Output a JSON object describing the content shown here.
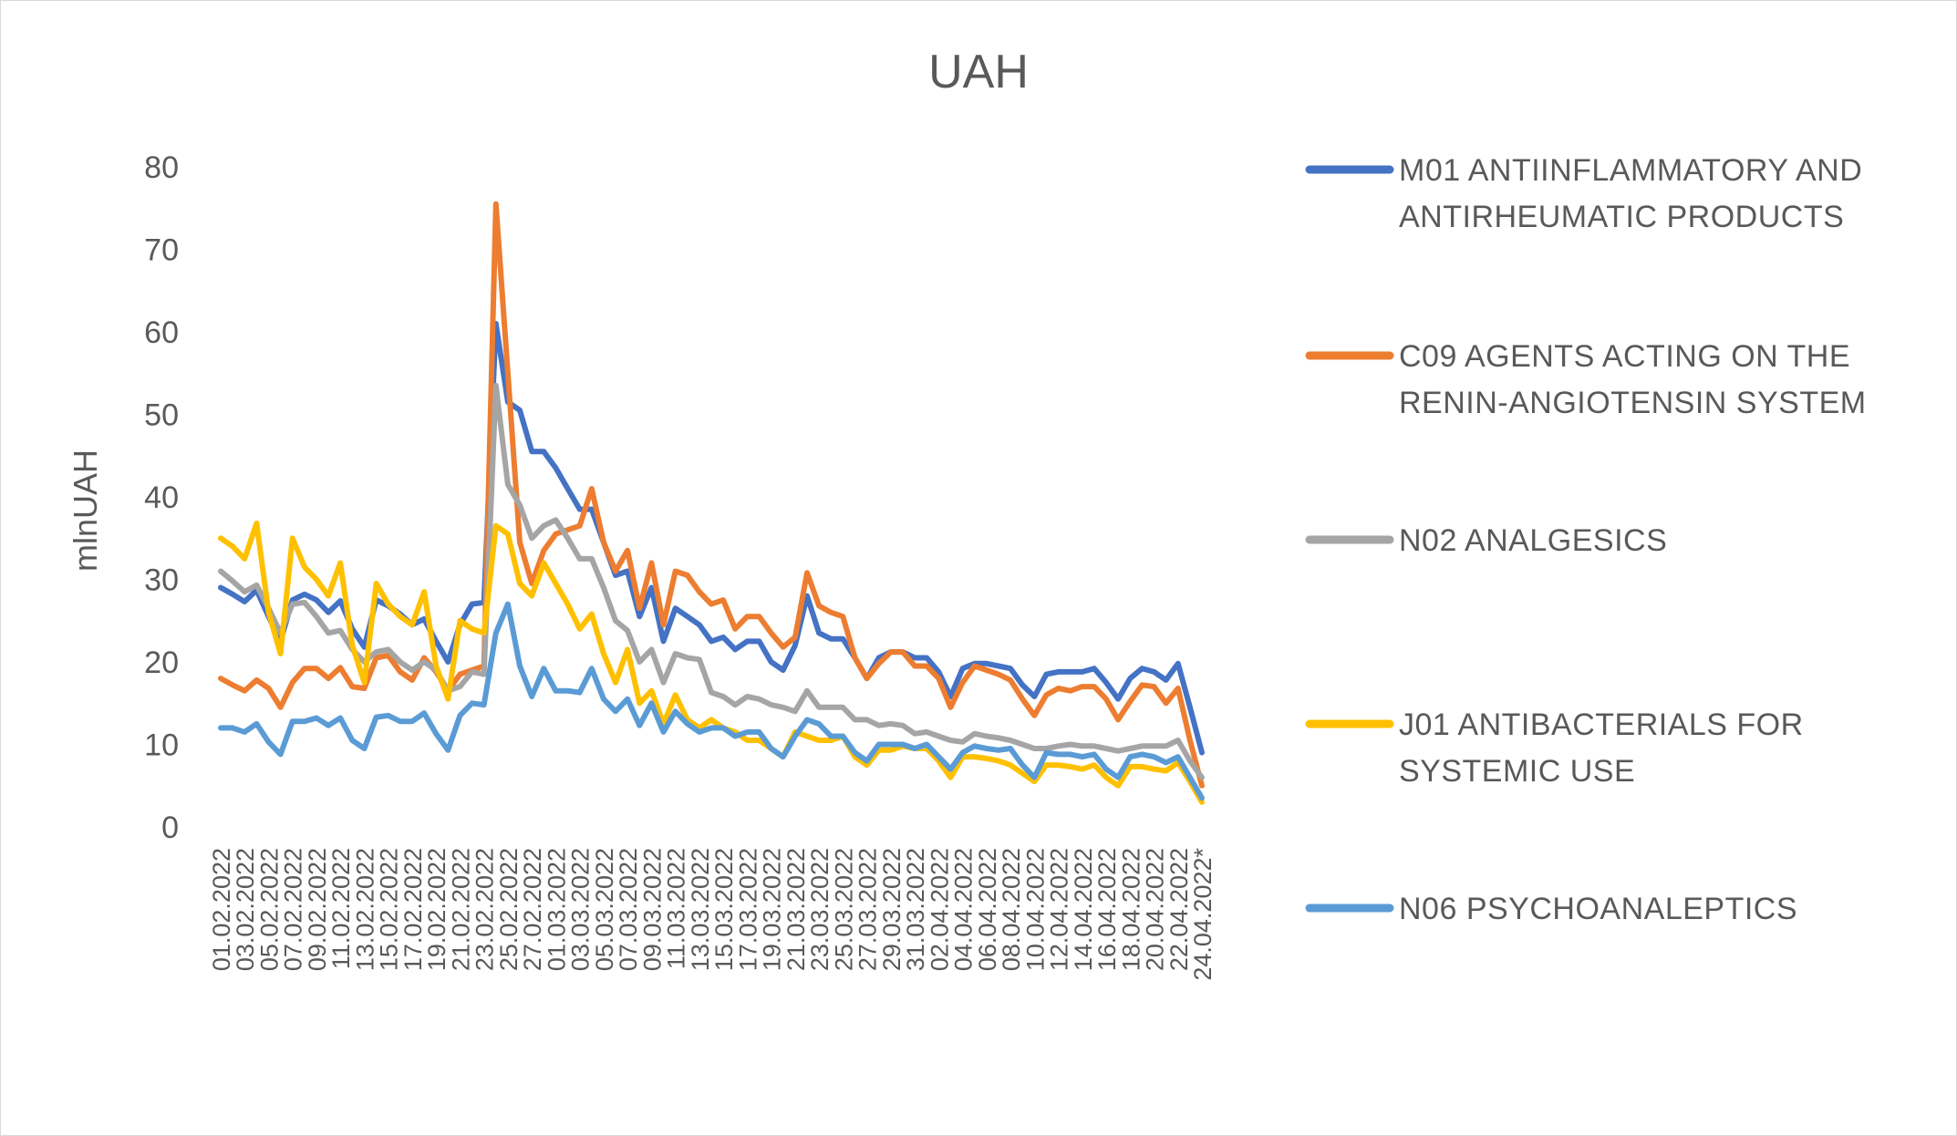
{
  "chart_data": {
    "type": "line",
    "title": "UAH",
    "xlabel": "",
    "ylabel": "mlnUAH",
    "ylim": [
      0,
      80
    ],
    "yticks": [
      0,
      10,
      20,
      30,
      40,
      50,
      60,
      70,
      80
    ],
    "grid": false,
    "legend_position": "right",
    "x": [
      "01.02.2022",
      "02.02.2022",
      "03.02.2022",
      "04.02.2022",
      "05.02.2022",
      "06.02.2022",
      "07.02.2022",
      "08.02.2022",
      "09.02.2022",
      "10.02.2022",
      "11.02.2022",
      "12.02.2022",
      "13.02.2022",
      "14.02.2022",
      "15.02.2022",
      "16.02.2022",
      "17.02.2022",
      "18.02.2022",
      "19.02.2022",
      "20.02.2022",
      "21.02.2022",
      "22.02.2022",
      "23.02.2022",
      "24.02.2022",
      "25.02.2022",
      "26.02.2022",
      "27.02.2022",
      "28.02.2022",
      "01.03.2022",
      "02.03.2022",
      "03.03.2022",
      "04.03.2022",
      "05.03.2022",
      "06.03.2022",
      "07.03.2022",
      "08.03.2022",
      "09.03.2022",
      "10.03.2022",
      "11.03.2022",
      "12.03.2022",
      "13.03.2022",
      "14.03.2022",
      "15.03.2022",
      "16.03.2022",
      "17.03.2022",
      "18.03.2022",
      "19.03.2022",
      "20.03.2022",
      "21.03.2022",
      "22.03.2022",
      "23.03.2022",
      "24.03.2022",
      "25.03.2022",
      "26.03.2022",
      "27.03.2022",
      "28.03.2022",
      "29.03.2022",
      "30.03.2022",
      "31.03.2022",
      "01.04.2022",
      "02.04.2022",
      "03.04.2022",
      "04.04.2022",
      "05.04.2022",
      "06.04.2022",
      "07.04.2022",
      "08.04.2022",
      "09.04.2022",
      "10.04.2022",
      "11.04.2022",
      "12.04.2022",
      "13.04.2022",
      "14.04.2022",
      "15.04.2022",
      "16.04.2022",
      "17.04.2022",
      "18.04.2022",
      "19.04.2022",
      "20.04.2022",
      "21.04.2022",
      "22.04.2022",
      "23.04.2022",
      "24.04.2022*"
    ],
    "x_tick_labels": [
      "01.02.2022",
      "03.02.2022",
      "05.02.2022",
      "07.02.2022",
      "09.02.2022",
      "11.02.2022",
      "13.02.2022",
      "15.02.2022",
      "17.02.2022",
      "19.02.2022",
      "21.02.2022",
      "23.02.2022",
      "25.02.2022",
      "27.02.2022",
      "01.03.2022",
      "03.03.2022",
      "05.03.2022",
      "07.03.2022",
      "09.03.2022",
      "11.03.2022",
      "13.03.2022",
      "15.03.2022",
      "17.03.2022",
      "19.03.2022",
      "21.03.2022",
      "23.03.2022",
      "25.03.2022",
      "27.03.2022",
      "29.03.2022",
      "31.03.2022",
      "02.04.2022",
      "04.04.2022",
      "06.04.2022",
      "08.04.2022",
      "10.04.2022",
      "12.04.2022",
      "14.04.2022",
      "16.04.2022",
      "18.04.2022",
      "20.04.2022",
      "22.04.2022",
      "24.04.2022*"
    ],
    "series": [
      {
        "name": "M01 ANTIINFLAMMATORY AND ANTIRHEUMATIC PRODUCTS",
        "color": "#4472C4",
        "values": [
          29,
          28.2,
          27.3,
          28.7,
          25.5,
          22.5,
          27.5,
          28.2,
          27.5,
          26,
          27.4,
          24,
          21.8,
          27.5,
          26.8,
          25.8,
          24.5,
          25.2,
          22.5,
          20,
          24.5,
          27,
          27.2,
          61,
          51.5,
          50.5,
          45.5,
          45.5,
          43.5,
          41,
          38.5,
          38.5,
          34.5,
          30.5,
          31,
          25.5,
          29,
          22.5,
          26.5,
          25.5,
          24.5,
          22.5,
          23,
          21.5,
          22.5,
          22.5,
          20,
          19,
          22,
          28,
          23.5,
          22.8,
          22.8,
          20.5,
          18,
          20.5,
          21.2,
          21.2,
          20.5,
          20.5,
          18.8,
          15.8,
          19.2,
          19.8,
          19.8,
          19.5,
          19.2,
          17.2,
          15.8,
          18.5,
          18.8,
          18.8,
          18.8,
          19.2,
          17.5,
          15.5,
          18,
          19.2,
          18.8,
          17.8,
          19.8,
          14.5,
          9
        ]
      },
      {
        "name": "C09 AGENTS ACTING ON THE RENIN-ANGIOTENSIN SYSTEM",
        "color": "#ED7D31",
        "values": [
          18,
          17.2,
          16.5,
          17.8,
          16.8,
          14.5,
          17.5,
          19.2,
          19.2,
          18,
          19.3,
          17,
          16.8,
          20.5,
          20.8,
          18.8,
          17.8,
          20.5,
          18.8,
          16.5,
          18.5,
          19,
          19.5,
          75.5,
          55,
          34.5,
          29.5,
          33.5,
          35.5,
          36,
          36.5,
          41,
          34.5,
          31,
          33.5,
          26.5,
          32,
          24.5,
          31,
          30.5,
          28.5,
          27,
          27.5,
          24,
          25.5,
          25.5,
          23.5,
          21.8,
          23,
          30.8,
          26.8,
          26,
          25.5,
          20.5,
          18,
          19.8,
          21.2,
          21.2,
          19.5,
          19.5,
          18,
          14.5,
          17.5,
          19.5,
          19,
          18.5,
          17.8,
          15.5,
          13.5,
          16,
          16.8,
          16.5,
          17,
          17,
          15.5,
          13,
          15.2,
          17.2,
          17,
          15,
          16.8,
          10.5,
          5
        ]
      },
      {
        "name": "N02 ANALGESICS",
        "color": "#A5A5A5",
        "values": [
          31,
          29.8,
          28.5,
          29.3,
          26.5,
          23.5,
          27,
          27.2,
          25.5,
          23.5,
          23.8,
          21.5,
          20,
          21.2,
          21.5,
          20,
          19,
          20,
          19,
          16.5,
          17,
          18.8,
          18.5,
          53.5,
          41.5,
          39,
          35,
          36.5,
          37.2,
          35,
          32.5,
          32.5,
          29,
          25,
          23.8,
          20,
          21.5,
          17.5,
          21,
          20.5,
          20.3,
          16.3,
          15.8,
          14.8,
          15.8,
          15.5,
          14.8,
          14.5,
          14,
          16.5,
          14.5,
          14.5,
          14.5,
          13,
          13,
          12.3,
          12.5,
          12.3,
          11.3,
          11.5,
          11,
          10.5,
          10.3,
          11.3,
          11,
          10.8,
          10.5,
          10,
          9.5,
          9.5,
          9.8,
          10,
          9.8,
          9.8,
          9.5,
          9.2,
          9.5,
          9.8,
          9.8,
          9.8,
          10.5,
          8,
          6
        ]
      },
      {
        "name": "J01 ANTIBACTERIALS FOR SYSTEMIC USE",
        "color": "#FFC000",
        "values": [
          35,
          34,
          32.5,
          36.8,
          26,
          21,
          35,
          31.5,
          30,
          28,
          32,
          22,
          17.5,
          29.5,
          27,
          25.5,
          24.5,
          28.5,
          19.5,
          15.5,
          25,
          24,
          23.5,
          36.5,
          35.5,
          29.5,
          28,
          32,
          29.5,
          27,
          24,
          25.8,
          21,
          17.5,
          21.5,
          15,
          16.5,
          12.5,
          16,
          13,
          12,
          13,
          12,
          11.5,
          10.5,
          10.5,
          9.5,
          8.5,
          11.5,
          11,
          10.5,
          10.5,
          11,
          8.5,
          7.5,
          9.3,
          9.3,
          9.8,
          9.5,
          9.5,
          8,
          6,
          8.5,
          8.5,
          8.3,
          8,
          7.5,
          6.5,
          5.5,
          7.5,
          7.5,
          7.3,
          7,
          7.5,
          6,
          5,
          7.3,
          7.3,
          7,
          6.8,
          7.8,
          5.5,
          3
        ]
      },
      {
        "name": "N06 PSYCHOANALEPTICS",
        "color": "#5B9BD5",
        "values": [
          12,
          12,
          11.5,
          12.5,
          10.3,
          8.8,
          12.8,
          12.8,
          13.2,
          12.3,
          13.2,
          10.5,
          9.5,
          13.3,
          13.5,
          12.8,
          12.8,
          13.8,
          11.3,
          9.3,
          13.5,
          15,
          14.8,
          23.5,
          27,
          19.5,
          15.8,
          19.2,
          16.5,
          16.5,
          16.3,
          19.2,
          15.5,
          14,
          15.5,
          12.3,
          15,
          11.5,
          14,
          12.5,
          11.5,
          12,
          12,
          11,
          11.5,
          11.5,
          9.5,
          8.5,
          11,
          13,
          12.5,
          11,
          11,
          9,
          8,
          10,
          10,
          10,
          9.5,
          10,
          8.5,
          7,
          9,
          9.8,
          9.5,
          9.3,
          9.5,
          7.5,
          6,
          9,
          8.8,
          8.8,
          8.5,
          8.8,
          7,
          6,
          8.5,
          8.8,
          8.5,
          7.8,
          8.5,
          6,
          3.5
        ]
      }
    ]
  }
}
